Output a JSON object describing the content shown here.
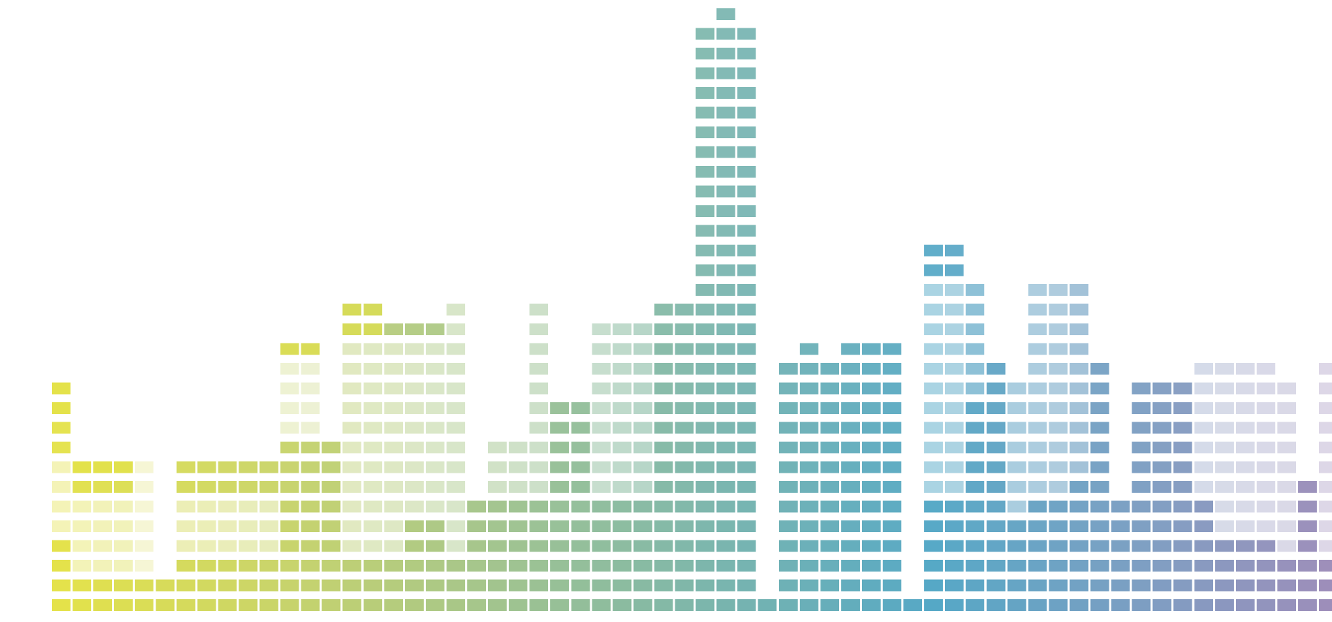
{
  "artwork": {
    "name": "city-skyline-mosaic",
    "gradient": [
      "#e4e24a",
      "#c9d46a",
      "#a2c48e",
      "#7ab5ad",
      "#55a8c6",
      "#7f9ec2",
      "#a48ab8"
    ],
    "accent": "#e4e24a"
  },
  "columns": [
    {
      "stack": 12,
      "fade": [
        4,
        7
      ],
      "fadeAmt": 0.6,
      "accentTop": 2
    },
    {
      "stack": 8,
      "fade": [
        2,
        5
      ],
      "fadeAmt": 0.6,
      "accentTop": 1
    },
    {
      "stack": 8,
      "fade": [
        2,
        5
      ],
      "fadeAmt": 0.6,
      "accentTop": 1
    },
    {
      "stack": 8,
      "fade": [
        2,
        5
      ],
      "fadeAmt": 0.6,
      "accentTop": 1
    },
    {
      "stack": 8,
      "fade": [
        2,
        7
      ],
      "fadeAmt": 0.75
    },
    {
      "stack": 2
    },
    {
      "stack": 8,
      "fade": [
        3,
        5
      ],
      "fadeAmt": 0.55
    },
    {
      "stack": 8,
      "fade": [
        3,
        5
      ],
      "fadeAmt": 0.55
    },
    {
      "stack": 8,
      "fade": [
        3,
        5
      ],
      "fadeAmt": 0.55
    },
    {
      "stack": 8,
      "fade": [
        3,
        5
      ],
      "fadeAmt": 0.55
    },
    {
      "stack": 8,
      "fade": [
        3,
        5
      ],
      "fadeAmt": 0.55
    },
    {
      "stack": 14,
      "fade": [
        9,
        12
      ],
      "fadeAmt": 0.7,
      "accentTop": 1
    },
    {
      "stack": 14,
      "fade": [
        9,
        12
      ],
      "fadeAmt": 0.7,
      "accentTop": 1
    },
    {
      "stack": 9
    },
    {
      "stack": 16,
      "fade": [
        3,
        13
      ],
      "fadeAmt": 0.55,
      "accentTop": 2
    },
    {
      "stack": 16,
      "fade": [
        3,
        13
      ],
      "fadeAmt": 0.55,
      "accentTop": 2
    },
    {
      "stack": 15,
      "fade": [
        3,
        13
      ],
      "fadeAmt": 0.55
    },
    {
      "stack": 15,
      "fade": [
        5,
        13
      ],
      "fadeAmt": 0.55
    },
    {
      "stack": 15,
      "fade": [
        5,
        13
      ],
      "fadeAmt": 0.55
    },
    {
      "stack": 16,
      "fade": [
        3,
        15
      ],
      "fadeAmt": 0.55
    },
    {
      "stack": 6
    },
    {
      "stack": 9,
      "fade": [
        6,
        8
      ],
      "fadeAmt": 0.5
    },
    {
      "stack": 9,
      "fade": [
        6,
        8
      ],
      "fadeAmt": 0.5
    },
    {
      "stack": 16,
      "fade": [
        6,
        15
      ],
      "fadeAmt": 0.5
    },
    {
      "stack": 11
    },
    {
      "stack": 11
    },
    {
      "stack": 15,
      "fade": [
        6,
        14
      ],
      "fadeAmt": 0.5
    },
    {
      "stack": 15,
      "fade": [
        6,
        14
      ],
      "fadeAmt": 0.45
    },
    {
      "stack": 15,
      "fade": [
        6,
        14
      ],
      "fadeAmt": 0.4
    },
    {
      "stack": 16
    },
    {
      "stack": 16
    },
    {
      "stack": 30
    },
    {
      "stack": 31
    },
    {
      "stack": 30
    },
    {
      "stack": 1
    },
    {
      "stack": 13
    },
    {
      "stack": 14
    },
    {
      "stack": 13
    },
    {
      "stack": 14
    },
    {
      "stack": 14
    },
    {
      "stack": 14
    },
    {
      "stack": 1
    },
    {
      "stack": 19,
      "fade": [
        6,
        16
      ],
      "fadeAmt": 0.5
    },
    {
      "stack": 19,
      "fade": [
        6,
        16
      ],
      "fadeAmt": 0.5
    },
    {
      "stack": 17,
      "fade": [
        11,
        16
      ],
      "fadeAmt": 0.3
    },
    {
      "stack": 13
    },
    {
      "stack": 12,
      "fade": [
        5,
        11
      ],
      "fadeAmt": 0.45
    },
    {
      "stack": 17,
      "fade": [
        6,
        16
      ],
      "fadeAmt": 0.45
    },
    {
      "stack": 17,
      "fade": [
        6,
        16
      ],
      "fadeAmt": 0.45
    },
    {
      "stack": 17,
      "fade": [
        7,
        16
      ],
      "fadeAmt": 0.35
    },
    {
      "stack": 13
    },
    {
      "stack": 6
    },
    {
      "stack": 12
    },
    {
      "stack": 12
    },
    {
      "stack": 12
    },
    {
      "stack": 13,
      "fade": [
        6,
        12
      ],
      "fadeAmt": 0.65
    },
    {
      "stack": 13,
      "fade": [
        4,
        12
      ],
      "fadeAmt": 0.65
    },
    {
      "stack": 13,
      "fade": [
        4,
        12
      ],
      "fadeAmt": 0.65
    },
    {
      "stack": 13,
      "fade": [
        4,
        12
      ],
      "fadeAmt": 0.65
    },
    {
      "stack": 12,
      "fade": [
        3,
        11
      ],
      "fadeAmt": 0.65
    },
    {
      "stack": 7
    },
    {
      "stack": 13,
      "fade": [
        3,
        12
      ],
      "fadeAmt": 0.65
    },
    {
      "stack": 13,
      "fade": [
        3,
        12
      ],
      "fadeAmt": 0.65
    },
    {
      "stack": 13
    }
  ]
}
